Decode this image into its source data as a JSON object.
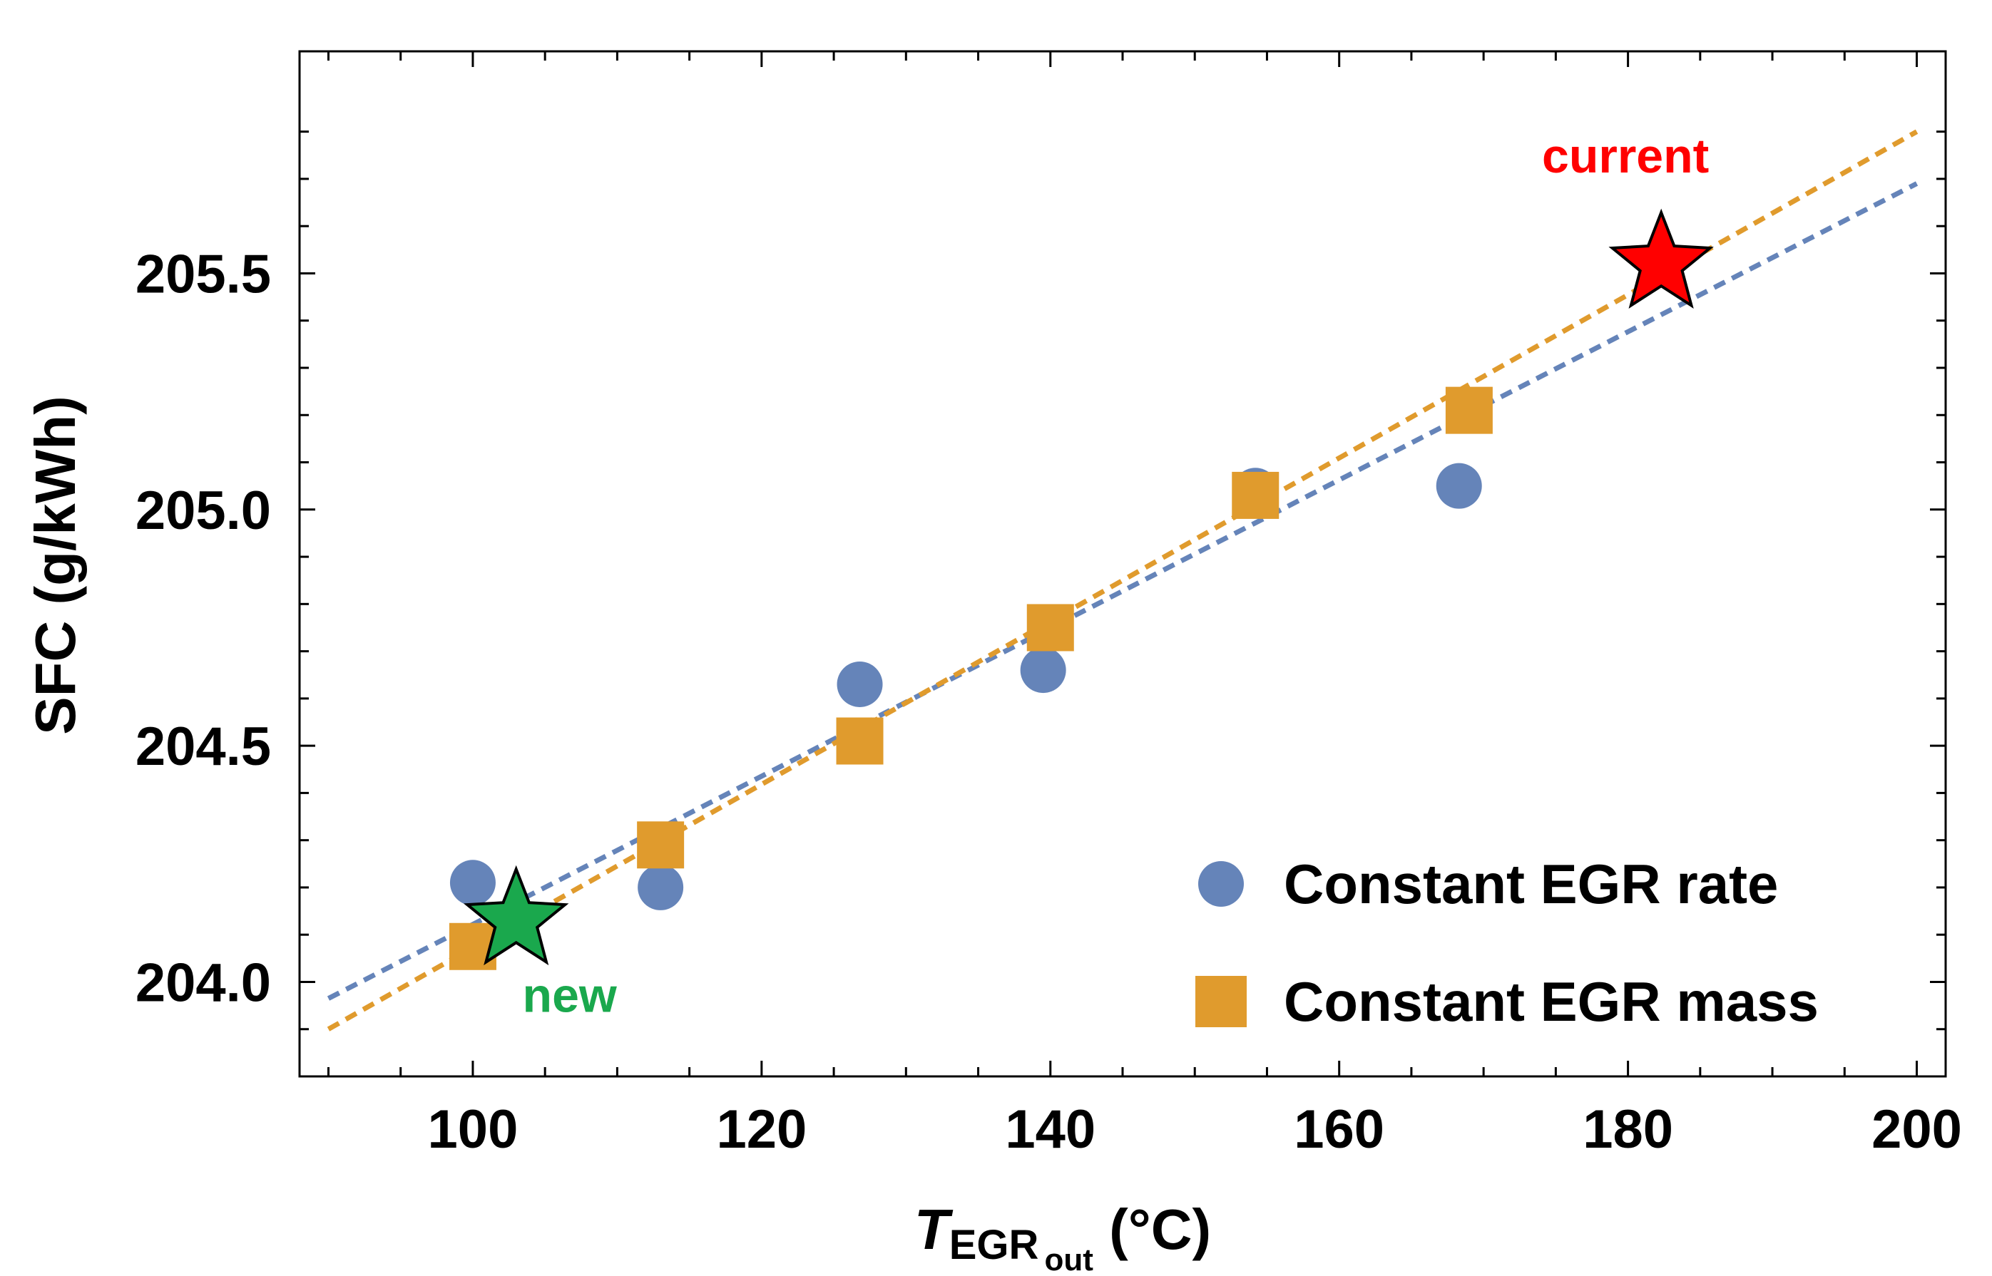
{
  "chart_data": {
    "type": "scatter",
    "title": "",
    "xlabel": {
      "main": "T",
      "sub": "EGR",
      "subsub": "out",
      "unit": " (°C)"
    },
    "ylabel": "SFC (g/kWh)",
    "xlim": [
      88,
      202
    ],
    "ylim": [
      203.8,
      205.97
    ],
    "x_ticks": [
      100,
      120,
      140,
      160,
      180,
      200
    ],
    "y_ticks": [
      204.0,
      204.5,
      205.0,
      205.5
    ],
    "x_tick_labels": [
      "100",
      "120",
      "140",
      "160",
      "180",
      "200"
    ],
    "y_tick_labels": [
      "204.0",
      "204.5",
      "205.0",
      "205.5"
    ],
    "grid": false,
    "legend_position": "bottom-right",
    "series": [
      {
        "name": "Constant EGR rate",
        "marker": "circle",
        "color": "#6584b9",
        "x": [
          100,
          113,
          126.8,
          139.5,
          154.2,
          168.3
        ],
        "y": [
          204.21,
          204.2,
          204.63,
          204.66,
          205.04,
          205.05
        ],
        "fit": {
          "x": [
            90,
            200
          ],
          "y": [
            203.965,
            205.69
          ]
        }
      },
      {
        "name": "Constant EGR mass",
        "marker": "square",
        "color": "#e09b2d",
        "x": [
          100,
          113,
          126.8,
          140,
          154.2,
          169
        ],
        "y": [
          204.075,
          204.29,
          204.51,
          204.75,
          205.03,
          205.21
        ],
        "fit": {
          "x": [
            90,
            200
          ],
          "y": [
            203.9,
            205.8
          ]
        }
      }
    ],
    "annotations": [
      {
        "label": "current",
        "marker": "star",
        "color": "#ff0000",
        "x": 182.3,
        "y": 205.52,
        "label_position": "above"
      },
      {
        "label": "new",
        "marker": "star",
        "color": "#1aa84d",
        "x": 103,
        "y": 204.13,
        "label_position": "below"
      }
    ]
  }
}
